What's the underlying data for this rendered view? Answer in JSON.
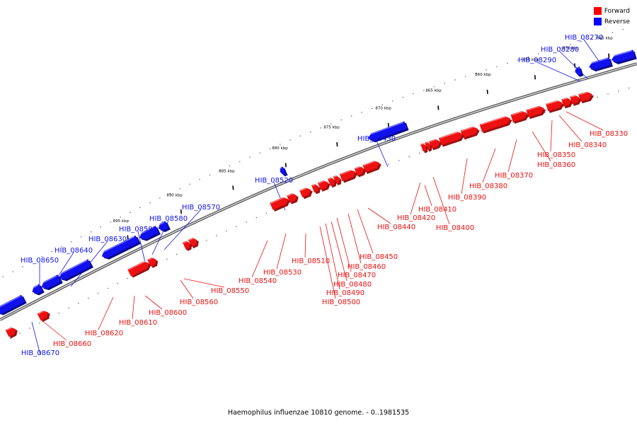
{
  "legend": {
    "forward": {
      "label": "Forward",
      "color": "#ff0000"
    },
    "reverse": {
      "label": "Reverse",
      "color": "#0000ff"
    }
  },
  "caption": "Haemophilus influenzae 10810 genome. - 0..1981535",
  "colors": {
    "forward": "#ee1111",
    "reverse": "#1111ee",
    "axis": "#888888"
  },
  "axis": {
    "ticks": [
      "845 kbp",
      "850 kbp",
      "855 kbp",
      "860 kbp",
      "865 kbp",
      "870 kbp",
      "875 kbp",
      "880 kbp",
      "885 kbp",
      "890 kbp",
      "895 kbp"
    ]
  },
  "reverse_genes": [
    "HIB_08270",
    "HIB_08280",
    "HIB_08290",
    "HIB_08430",
    "HIB_08520",
    "HIB_08570",
    "HIB_08580",
    "HIB_08590",
    "HIB_08630",
    "HIB_08640",
    "HIB_08650",
    "HIB_08670"
  ],
  "forward_genes": [
    "HIB_08330",
    "HIB_08340",
    "HIB_08350",
    "HIB_08360",
    "HIB_08370",
    "HIB_08380",
    "HIB_08390",
    "HIB_08400",
    "HIB_08410",
    "HIB_08420",
    "HIB_08440",
    "HIB_08450",
    "HIB_08460",
    "HIB_08470",
    "HIB_08480",
    "HIB_08490",
    "HIB_08500",
    "HIB_08510",
    "HIB_08530",
    "HIB_08540",
    "HIB_08550",
    "HIB_08560",
    "HIB_08600",
    "HIB_08610",
    "HIB_08620",
    "HIB_08660"
  ]
}
